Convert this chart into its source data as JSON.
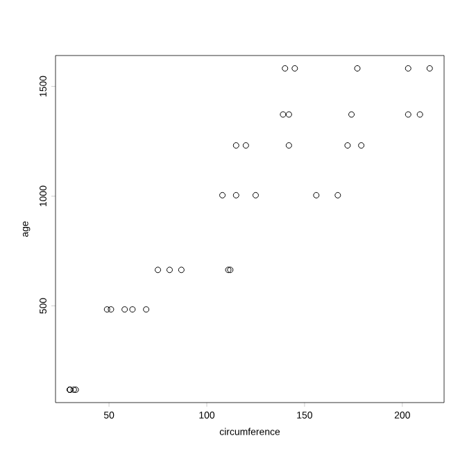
{
  "chart_data": {
    "type": "scatter",
    "xlabel": "circumference",
    "ylabel": "age",
    "series": [
      {
        "color": "#000000",
        "x": [
          30,
          58,
          87,
          115,
          120,
          142,
          145,
          33,
          69,
          111,
          156,
          172,
          203,
          203,
          30,
          51,
          75,
          108,
          115,
          139,
          140,
          32,
          62,
          112,
          167,
          179,
          209,
          214,
          30,
          49,
          81,
          125,
          142,
          174,
          177
        ],
        "values": [
          118,
          484,
          664,
          1004,
          1231,
          1372,
          1582,
          118,
          484,
          664,
          1004,
          1231,
          1372,
          1582,
          118,
          484,
          664,
          1004,
          1231,
          1372,
          1582,
          118,
          484,
          664,
          1004,
          1231,
          1372,
          1582,
          118,
          484,
          664,
          1004,
          1231,
          1372,
          1582
        ]
      }
    ],
    "xlim": [
      22.64,
      221.36
    ],
    "ylim": [
      59.44,
      1640.56
    ],
    "xticks": [
      50,
      100,
      150,
      200
    ],
    "yticks": [
      500,
      1000,
      1500
    ],
    "marker": "circle"
  }
}
